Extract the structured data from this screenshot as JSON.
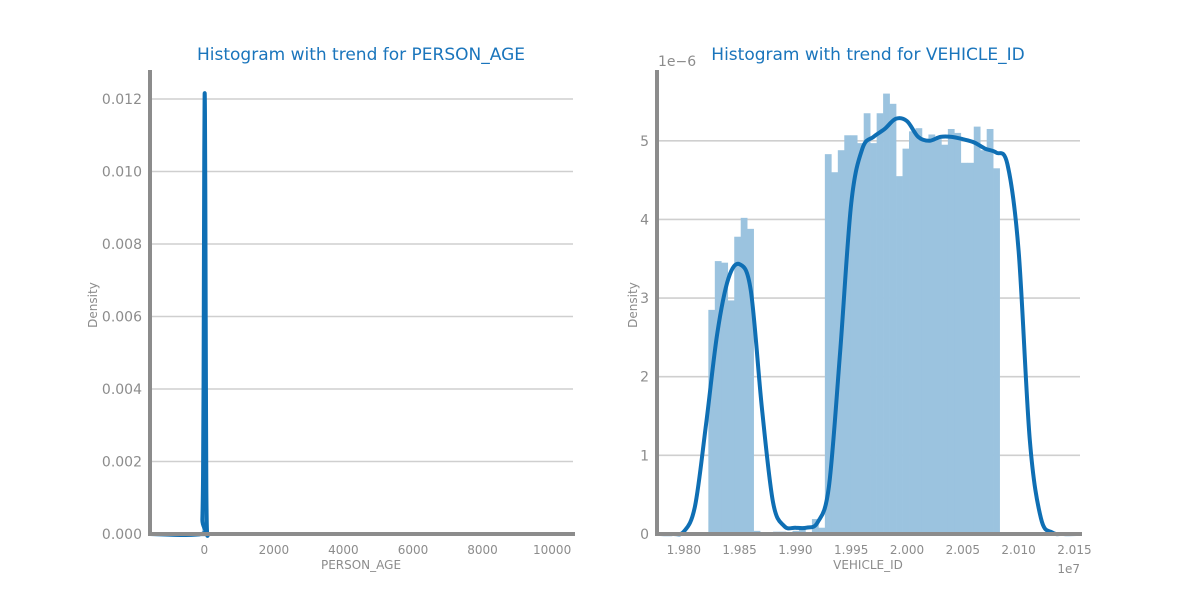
{
  "chart_data": [
    {
      "type": "histogram",
      "title": "Histogram with trend for PERSON_AGE",
      "xlabel": "PERSON_AGE",
      "ylabel": "Density",
      "xlim": [
        -1560,
        10600
      ],
      "ylim": [
        0,
        0.0128
      ],
      "xticks": [
        0,
        2000,
        4000,
        6000,
        8000,
        10000
      ],
      "xtick_labels": [
        "0",
        "2000",
        "4000",
        "6000",
        "8000",
        "10000"
      ],
      "yticks": [
        0,
        0.002,
        0.004,
        0.006,
        0.008,
        0.01,
        0.012
      ],
      "ytick_labels": [
        "0.000",
        "0.002",
        "0.004",
        "0.006",
        "0.008",
        "0.010",
        "0.012"
      ],
      "grid": "horizontal",
      "bars": [
        {
          "x0": -970,
          "x1": -770,
          "y": 3e-05
        },
        {
          "x0": -60,
          "x1": 70,
          "y": 0.00455
        },
        {
          "x0": 880,
          "x1": 1070,
          "y": 4e-05
        },
        {
          "x0": 2040,
          "x1": 2080,
          "y": 2e-05
        }
      ],
      "trend": {
        "name": "trend",
        "x": [
          -1560,
          -80,
          -55,
          -35,
          -20,
          -10,
          0,
          10,
          20,
          30,
          40,
          50,
          60,
          80,
          130,
          300,
          10000
        ],
        "y": [
          0,
          0,
          0.0004,
          0.0016,
          0.0042,
          0.0075,
          0.0105,
          0.0121,
          0.0116,
          0.0095,
          0.0064,
          0.0035,
          0.0012,
          5e-05,
          0,
          0,
          0
        ]
      }
    },
    {
      "type": "histogram",
      "title": "Histogram with trend for VEHICLE_ID",
      "xlabel": "VEHICLE_ID",
      "ylabel": "Density",
      "x_multiplier": "1e7",
      "y_multiplier": "1e−6",
      "xlim": [
        1.9776,
        2.0155
      ],
      "ylim": [
        0,
        5.9
      ],
      "xticks": [
        1.98,
        1.985,
        1.99,
        1.995,
        2.0,
        2.005,
        2.01,
        2.015
      ],
      "xtick_labels": [
        "1.980",
        "1.985",
        "1.990",
        "1.995",
        "2.000",
        "2.005",
        "2.010",
        "2.015"
      ],
      "yticks": [
        0,
        1,
        2,
        3,
        4,
        5
      ],
      "ytick_labels": [
        "0",
        "1",
        "2",
        "3",
        "4",
        "5"
      ],
      "grid": "horizontal",
      "bin_start": 1.9822,
      "bin_width": 0.00058,
      "bar_heights": [
        2.85,
        3.47,
        3.45,
        2.97,
        3.78,
        4.02,
        3.88,
        0.04,
        0.0,
        0.0,
        0.03,
        0.03,
        0.0,
        0.04,
        0.08,
        0.0,
        0.19,
        0.08,
        4.83,
        4.6,
        4.88,
        5.07,
        5.07,
        4.97,
        5.35,
        4.97,
        5.35,
        5.6,
        5.47,
        4.55,
        4.9,
        5.12,
        5.16,
        5.02,
        5.08,
        5.02,
        4.95,
        5.15,
        5.1,
        4.72,
        4.72,
        5.18,
        4.88,
        5.15,
        4.65
      ],
      "trend": {
        "name": "trend",
        "x": [
          1.9776,
          1.979,
          1.98,
          1.981,
          1.982,
          1.983,
          1.984,
          1.985,
          1.986,
          1.987,
          1.988,
          1.989,
          1.99,
          1.991,
          1.992,
          1.993,
          1.994,
          1.995,
          1.996,
          1.997,
          1.998,
          1.999,
          2.0,
          2.001,
          2.002,
          2.003,
          2.004,
          2.005,
          2.006,
          2.007,
          2.008,
          2.009,
          2.01,
          2.011,
          2.012,
          2.013,
          2.014,
          2.0155
        ],
        "y": [
          0.0,
          0.0,
          0.03,
          0.35,
          1.4,
          2.55,
          3.25,
          3.43,
          3.1,
          1.6,
          0.4,
          0.1,
          0.08,
          0.08,
          0.15,
          0.6,
          2.3,
          4.2,
          4.9,
          5.05,
          5.15,
          5.28,
          5.25,
          5.05,
          5.0,
          5.05,
          5.05,
          5.02,
          4.98,
          4.9,
          4.85,
          4.7,
          3.6,
          1.2,
          0.2,
          0.02,
          0.0,
          0.0
        ]
      }
    }
  ]
}
